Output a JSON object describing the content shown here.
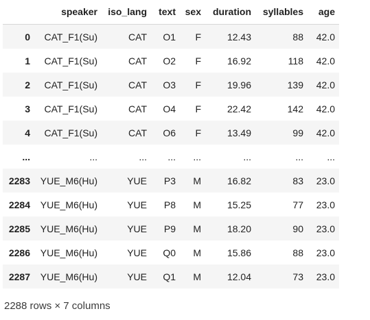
{
  "table": {
    "columns": [
      "",
      "speaker",
      "iso_lang",
      "text",
      "sex",
      "duration",
      "syllables",
      "age"
    ],
    "rows": [
      [
        "0",
        "CAT_F1(Su)",
        "CAT",
        "O1",
        "F",
        "12.43",
        "88",
        "42.0"
      ],
      [
        "1",
        "CAT_F1(Su)",
        "CAT",
        "O2",
        "F",
        "16.92",
        "118",
        "42.0"
      ],
      [
        "2",
        "CAT_F1(Su)",
        "CAT",
        "O3",
        "F",
        "19.96",
        "139",
        "42.0"
      ],
      [
        "3",
        "CAT_F1(Su)",
        "CAT",
        "O4",
        "F",
        "22.42",
        "142",
        "42.0"
      ],
      [
        "4",
        "CAT_F1(Su)",
        "CAT",
        "O6",
        "F",
        "13.49",
        "99",
        "42.0"
      ],
      [
        "...",
        "...",
        "...",
        "...",
        "...",
        "...",
        "...",
        "..."
      ],
      [
        "2283",
        "YUE_M6(Hu)",
        "YUE",
        "P3",
        "M",
        "16.82",
        "83",
        "23.0"
      ],
      [
        "2284",
        "YUE_M6(Hu)",
        "YUE",
        "P8",
        "M",
        "15.25",
        "77",
        "23.0"
      ],
      [
        "2285",
        "YUE_M6(Hu)",
        "YUE",
        "P9",
        "M",
        "18.20",
        "90",
        "23.0"
      ],
      [
        "2286",
        "YUE_M6(Hu)",
        "YUE",
        "Q0",
        "M",
        "15.86",
        "88",
        "23.0"
      ],
      [
        "2287",
        "YUE_M6(Hu)",
        "YUE",
        "Q1",
        "M",
        "12.04",
        "73",
        "23.0"
      ]
    ]
  },
  "footer": {
    "shape_text": "2288 rows × 7 columns"
  }
}
